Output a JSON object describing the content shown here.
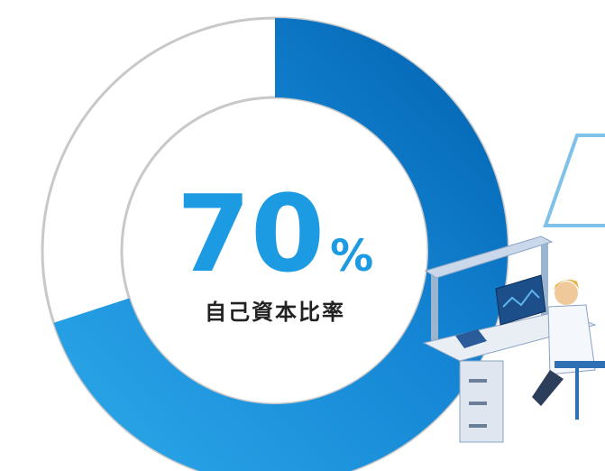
{
  "chart_data": {
    "type": "donut",
    "categories": [
      "自己資本比率"
    ],
    "values": [
      70
    ],
    "value_labels": [
      "70%"
    ],
    "total": 100,
    "color": "#1487d6"
  }
}
